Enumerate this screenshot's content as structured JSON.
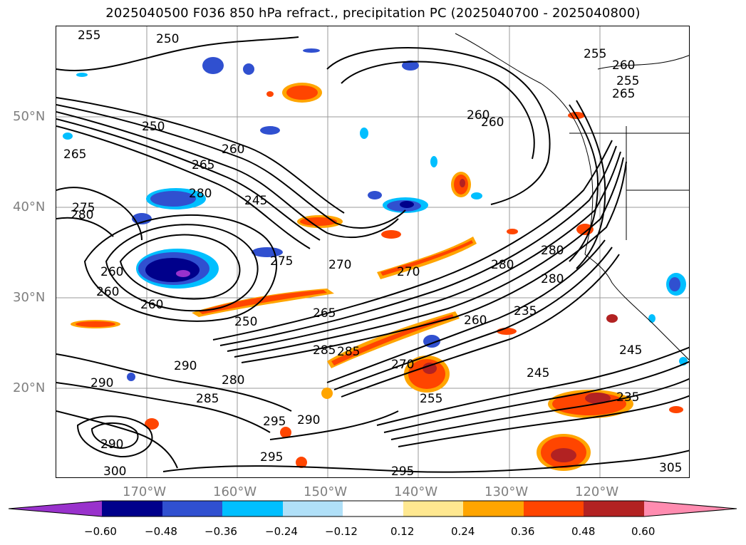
{
  "title": "2025040500 F036 850 hPa refract., precipitation PC (2025040700 - 2025040800)",
  "lat_labels": [
    "50°N",
    "40°N",
    "30°N",
    "20°N"
  ],
  "lon_labels": [
    "170°W",
    "160°W",
    "150°W",
    "140°W",
    "130°W",
    "120°W"
  ],
  "colorbar": {
    "ticks": [
      "−0.60",
      "−0.48",
      "−0.36",
      "−0.24",
      "−0.12",
      "0.12",
      "0.24",
      "0.36",
      "0.48",
      "0.60"
    ],
    "colors": [
      "#9932cc",
      "#00008b",
      "#3050d0",
      "#00bfff",
      "#b0e0f8",
      "#ffffff",
      "#ffe890",
      "#ffa500",
      "#ff4500",
      "#b22222",
      "#ff8cb0"
    ]
  },
  "contour_labels": [
    "255",
    "250",
    "260",
    "265",
    "280",
    "275",
    "260",
    "270",
    "260",
    "270",
    "280",
    "235",
    "245",
    "265",
    "285",
    "290",
    "280",
    "285",
    "290",
    "295",
    "300",
    "290",
    "295",
    "235",
    "245",
    "255",
    "260",
    "275",
    "280",
    "250",
    "260",
    "255",
    "250",
    "260",
    "245",
    "285",
    "290",
    "295",
    "305",
    "265",
    "270",
    "280",
    "260",
    "255",
    "280",
    "260",
    "265"
  ]
}
